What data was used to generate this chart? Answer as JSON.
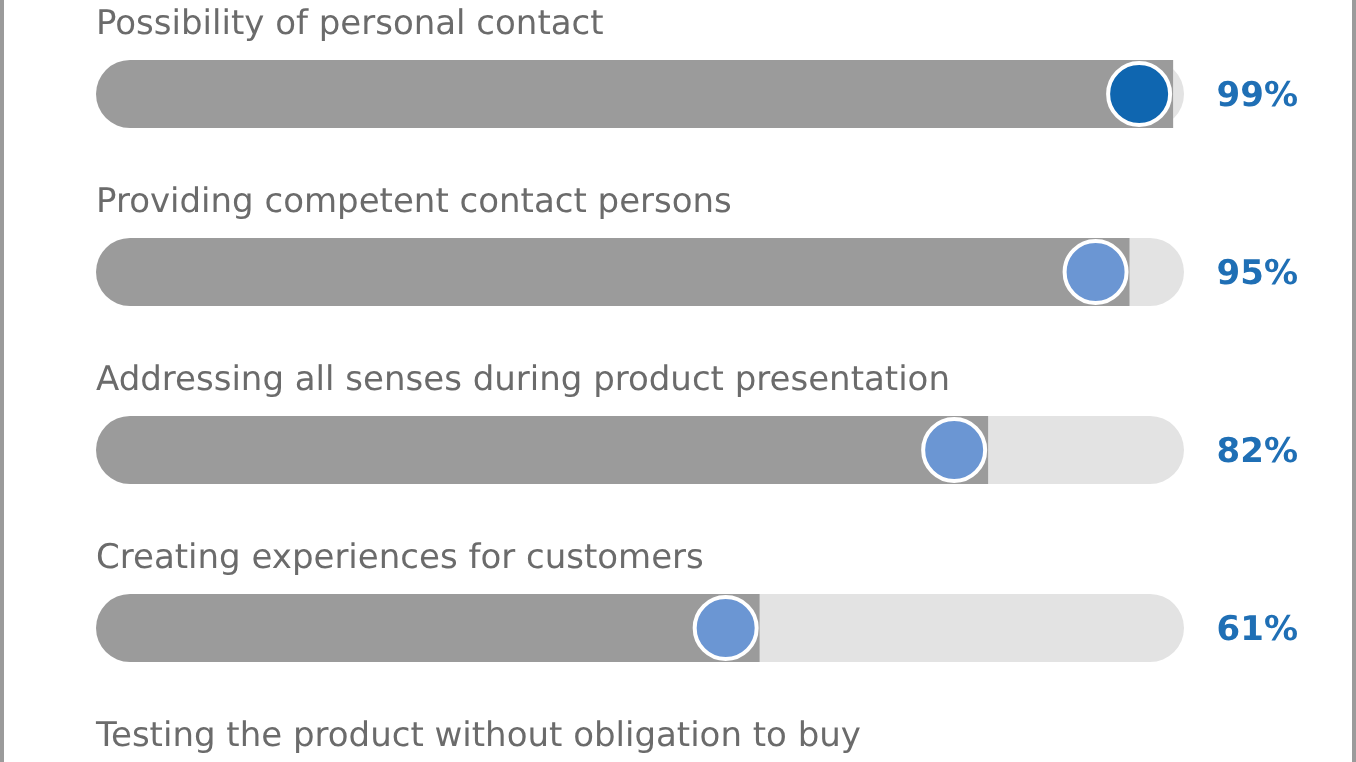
{
  "chart_data": {
    "type": "bar",
    "orientation": "horizontal",
    "categories": [
      "Possibility of personal contact",
      "Providing competent contact persons",
      "Addressing all senses during product presentation",
      "Creating experiences for customers",
      "Testing the product without obligation to buy"
    ],
    "values": [
      99,
      95,
      82,
      61,
      null
    ],
    "value_labels": [
      "99%",
      "95%",
      "82%",
      "61%",
      null
    ],
    "color": "#9b9b9b",
    "xlim": [
      0,
      100
    ]
  }
}
